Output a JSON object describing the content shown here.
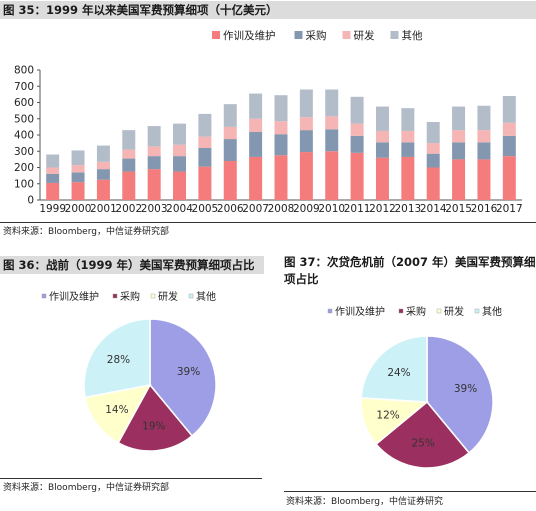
{
  "fig35": {
    "title": "图 35：1999 年以来美国军费预算细项（十亿美元）",
    "source": "资料来源：Bloomberg，中信证券研究部"
  },
  "fig36": {
    "title": "图 36：战前（1999 年）美国军费预算细项占比",
    "source": "资料来源：Bloomberg，中信证券研究部"
  },
  "fig37": {
    "title_line1": "图 37：次贷危机前（2007 年）美国军费预算细",
    "title_line2": "项占比",
    "source": "资料来源：Bloomberg，中信证券研究"
  },
  "chart_data": [
    {
      "type": "bar",
      "stacked": true,
      "categories": [
        "1999",
        "2000",
        "2001",
        "2002",
        "2003",
        "2004",
        "2005",
        "2006",
        "2007",
        "2008",
        "2009",
        "2010",
        "2011",
        "2012",
        "2013",
        "2014",
        "2015",
        "2016",
        "2017"
      ],
      "series": [
        {
          "name": "作训及维护",
          "color": "#f47c7c",
          "values": [
            105,
            110,
            125,
            175,
            190,
            175,
            205,
            240,
            265,
            275,
            295,
            300,
            290,
            260,
            265,
            200,
            250,
            250,
            270
          ]
        },
        {
          "name": "采购",
          "color": "#8497b0",
          "values": [
            55,
            60,
            65,
            80,
            80,
            95,
            115,
            135,
            155,
            130,
            135,
            135,
            105,
            95,
            90,
            85,
            105,
            105,
            125
          ]
        },
        {
          "name": "研发",
          "color": "#f5b5b5",
          "values": [
            40,
            45,
            45,
            55,
            60,
            70,
            70,
            75,
            80,
            80,
            80,
            80,
            75,
            70,
            70,
            65,
            75,
            75,
            80
          ]
        },
        {
          "name": "其他",
          "color": "#b3bdca",
          "values": [
            80,
            90,
            100,
            120,
            125,
            130,
            140,
            140,
            155,
            160,
            170,
            165,
            165,
            150,
            140,
            130,
            145,
            150,
            165
          ]
        }
      ],
      "ylim": [
        0,
        800
      ],
      "yticks": [
        0,
        100,
        200,
        300,
        400,
        500,
        600,
        700,
        800
      ],
      "grid": false,
      "legend": "top-right"
    },
    {
      "type": "pie",
      "legend": [
        "作训及维护",
        "采购",
        "研发",
        "其他"
      ],
      "slices": [
        {
          "name": "作训及维护",
          "value": 39,
          "label": "39%",
          "color": "#9e9ee6"
        },
        {
          "name": "采购",
          "value": 19,
          "label": "19%",
          "color": "#9b3060"
        },
        {
          "name": "研发",
          "value": 14,
          "label": "14%",
          "color": "#ffffcc"
        },
        {
          "name": "其他",
          "value": 28,
          "label": "28%",
          "color": "#ccf2f8"
        }
      ]
    },
    {
      "type": "pie",
      "legend": [
        "作训及维护",
        "采购",
        "研发",
        "其他"
      ],
      "slices": [
        {
          "name": "作训及维护",
          "value": 39,
          "label": "39%",
          "color": "#9e9ee6"
        },
        {
          "name": "采购",
          "value": 25,
          "label": "25%",
          "color": "#9b3060"
        },
        {
          "name": "研发",
          "value": 12,
          "label": "12%",
          "color": "#ffffcc"
        },
        {
          "name": "其他",
          "value": 24,
          "label": "24%",
          "color": "#ccf2f8"
        }
      ]
    }
  ]
}
